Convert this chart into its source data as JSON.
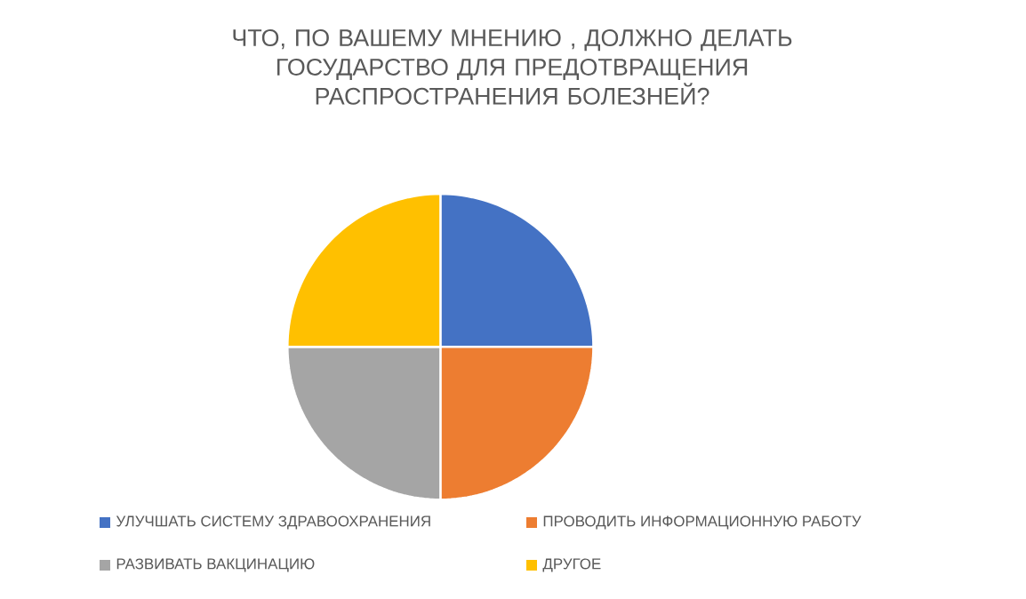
{
  "chart_data": {
    "type": "pie",
    "title": "ЧТО, ПО ВАШЕМУ МНЕНИЮ , ДОЛЖНО ДЕЛАТЬ ГОСУДАРСТВО ДЛЯ ПРЕДОТВРАЩЕНИЯ РАСПРОСТРАНЕНИЯ  БОЛЕЗНЕЙ?",
    "categories": [
      "УЛУЧШАТЬ СИСТЕМУ ЗДРАВООХРАНЕНИЯ",
      "ПРОВОДИТЬ ИНФОРМАЦИОННУЮ РАБОТУ",
      "РАЗВИВАТЬ ВАКЦИНАЦИЮ",
      "ДРУГОЕ"
    ],
    "values": [
      25,
      25,
      25,
      25
    ],
    "colors": [
      "#4472c4",
      "#ed7d31",
      "#a5a5a5",
      "#ffc000"
    ],
    "legend": "bottom"
  }
}
